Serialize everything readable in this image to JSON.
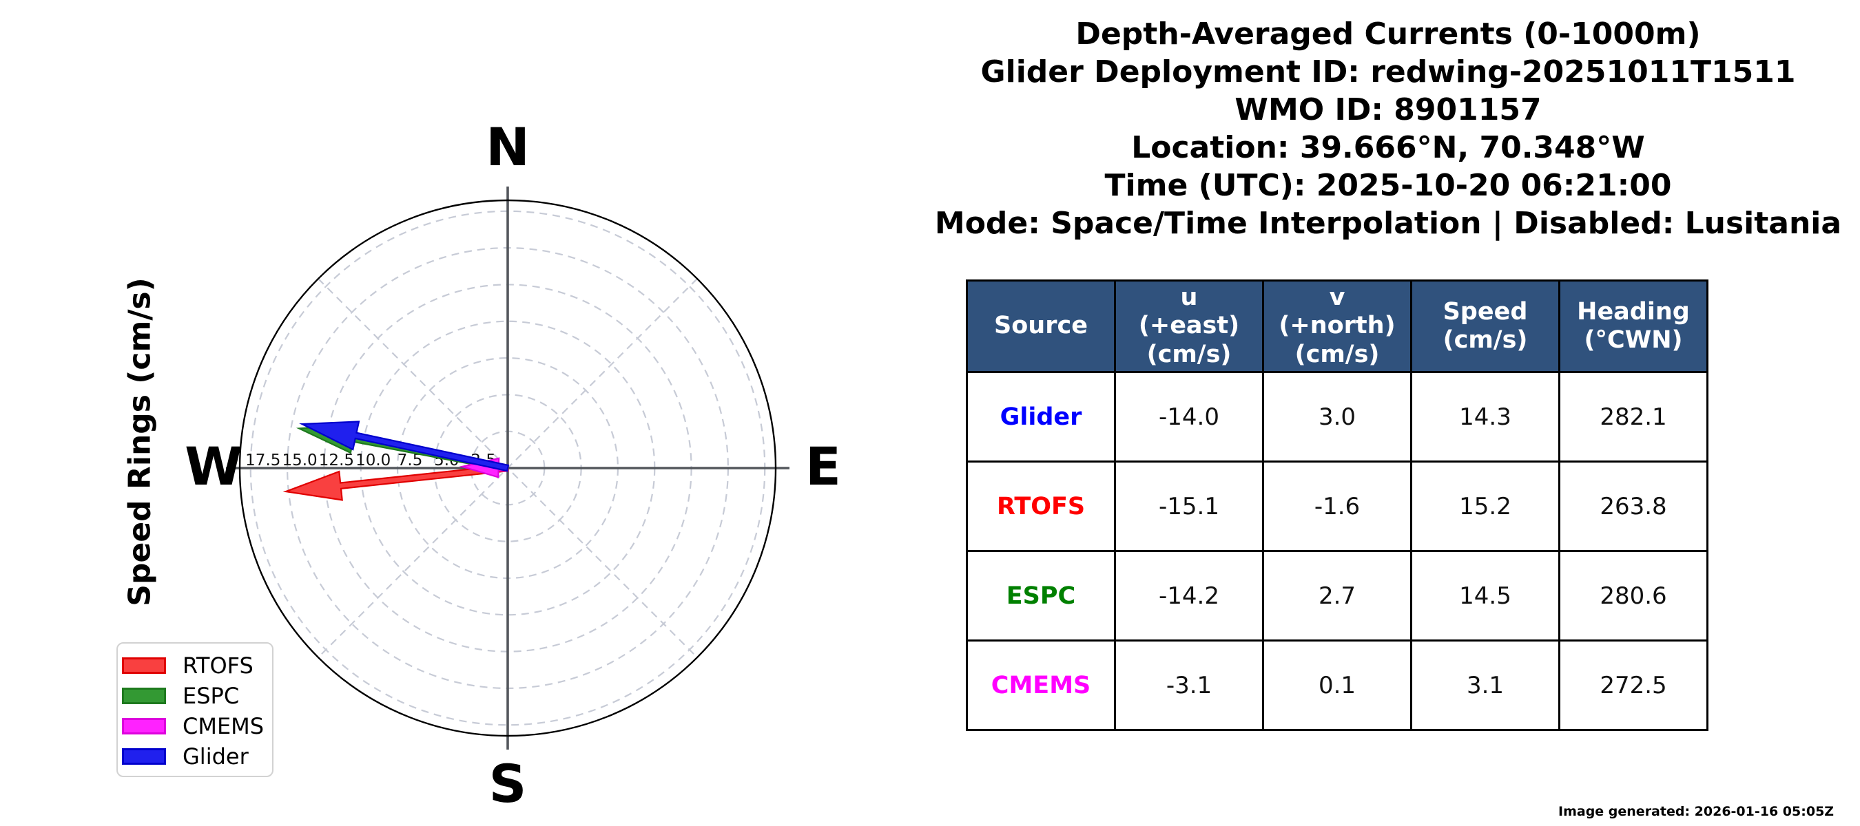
{
  "title": {
    "lines": [
      "Depth-Averaged Currents (0-1000m)",
      "Glider Deployment ID: redwing-20251011T1511",
      "WMO ID: 8901157",
      "Location: 39.666°N, 70.348°W",
      "Time (UTC): 2025-10-20 06:21:00",
      "Mode: Space/Time Interpolation | Disabled: Lusitania"
    ]
  },
  "polar": {
    "axis_label": "Speed Rings (cm/s)",
    "compass": {
      "north": "N",
      "east": "E",
      "south": "S",
      "west": "W"
    }
  },
  "chart_data": {
    "type": "vector-polar",
    "title": "Depth-Averaged Currents (0-1000m)",
    "r_axis_label": "Speed Rings (cm/s)",
    "units": "cm/s",
    "r_outer": 18.24,
    "ring_step": 2.5,
    "ring_values": [
      2.5,
      5.0,
      7.5,
      10.0,
      12.5,
      15.0,
      17.5
    ],
    "compass_labels": [
      "N",
      "E",
      "S",
      "W"
    ],
    "grid": "dashed concentric rings every 2.5 cm/s with 45-degree dashed spokes, solid N-S and E-W axes",
    "legend_position": "lower left",
    "vectors": [
      {
        "name": "RTOFS",
        "u": -15.1,
        "v": -1.6,
        "speed": 15.2,
        "heading_cwn": 263.8,
        "color": "#f94040",
        "edge": "#e00000"
      },
      {
        "name": "ESPC",
        "u": -14.2,
        "v": 2.7,
        "speed": 14.5,
        "heading_cwn": 280.6,
        "color": "#339933",
        "edge": "#1e7a1e"
      },
      {
        "name": "CMEMS",
        "u": -3.1,
        "v": 0.1,
        "speed": 3.1,
        "heading_cwn": 272.5,
        "color": "#ff22ff",
        "edge": "#dd00dd"
      },
      {
        "name": "Glider",
        "u": -14.0,
        "v": 3.0,
        "speed": 14.3,
        "heading_cwn": 282.1,
        "color": "#2020ee",
        "edge": "#0000cc"
      }
    ]
  },
  "legend": {
    "items": [
      {
        "label": "RTOFS",
        "color": "#f94040",
        "edge": "#e00000"
      },
      {
        "label": "ESPC",
        "color": "#339933",
        "edge": "#1e7a1e"
      },
      {
        "label": "CMEMS",
        "color": "#ff22ff",
        "edge": "#dd00dd"
      },
      {
        "label": "Glider",
        "color": "#2020ee",
        "edge": "#0000cc"
      }
    ]
  },
  "table": {
    "header_bg": "#30527d",
    "headers": [
      "Source",
      "u\n(+east)\n(cm/s)",
      "v\n(+north)\n(cm/s)",
      "Speed\n(cm/s)",
      "Heading\n(°CWN)"
    ],
    "rows": [
      {
        "source": "Glider",
        "color": "#0000ff",
        "u": "-14.0",
        "v": "3.0",
        "speed": "14.3",
        "heading": "282.1"
      },
      {
        "source": "RTOFS",
        "color": "#ff0000",
        "u": "-15.1",
        "v": "-1.6",
        "speed": "15.2",
        "heading": "263.8"
      },
      {
        "source": "ESPC",
        "color": "#008000",
        "u": "-14.2",
        "v": "2.7",
        "speed": "14.5",
        "heading": "280.6"
      },
      {
        "source": "CMEMS",
        "color": "#ff00ff",
        "u": "-3.1",
        "v": "0.1",
        "speed": "3.1",
        "heading": "272.5"
      }
    ]
  },
  "footer": {
    "generated_text": "Image generated: 2026-01-16 05:05Z"
  }
}
